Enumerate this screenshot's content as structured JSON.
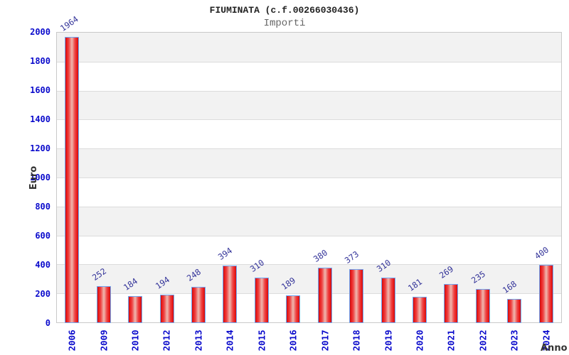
{
  "header": {
    "title": "FIUMINATA (c.f.00266030436)",
    "subtitle": "Importi"
  },
  "chart_data": {
    "type": "bar",
    "title": "FIUMINATA (c.f.00266030436)",
    "subtitle": "Importi",
    "xlabel": "Anno",
    "ylabel": "Euro",
    "categories": [
      "2006",
      "2009",
      "2010",
      "2012",
      "2013",
      "2014",
      "2015",
      "2016",
      "2017",
      "2018",
      "2019",
      "2020",
      "2021",
      "2022",
      "2023",
      "2024"
    ],
    "values": [
      1964,
      252,
      184,
      194,
      248,
      394,
      310,
      189,
      380,
      373,
      310,
      181,
      269,
      235,
      168,
      400
    ],
    "ylim": [
      0,
      2000
    ],
    "ytick_interval": 200,
    "yticks": [
      0,
      200,
      400,
      600,
      800,
      1000,
      1200,
      1400,
      1600,
      1800,
      2000
    ],
    "grid": "horizontal-bands-alternating",
    "legend": "none",
    "value_labels": "above-bars-rotated",
    "colors": {
      "tick_label": "#0a0acc",
      "value_label": "#333399",
      "bar_edge": "#c90f0f",
      "bar_mid": "#efb0a8",
      "bar_bright": "#ea1c1c",
      "bar_border": "#6fa8f5",
      "band_gray": "#f2f2f2",
      "band_white": "#ffffff",
      "grid_line": "#dcdcdc",
      "plot_border": "#c9c9c9",
      "axis_title": "#333333",
      "title_color": "#222222",
      "subtitle_color": "#666666"
    }
  }
}
